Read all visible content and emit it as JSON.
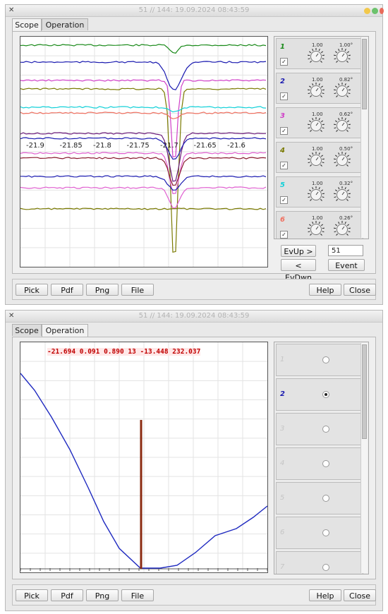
{
  "window_title": "51 // 144: 19.09.2024 08:43:59",
  "tabs": [
    "Scope",
    "Operation"
  ],
  "scope": {
    "x_tick_labels": [
      "-21.9",
      "-21.85",
      "-21.8",
      "-21.75",
      "-21.7",
      "-21.65",
      "-21.6"
    ],
    "channels": [
      {
        "num": "1",
        "color": "#1a8a1a",
        "gain": "1.00",
        "offset": "1.00°",
        "checked": "✓"
      },
      {
        "num": "2",
        "color": "#1a1ab0",
        "gain": "1.00",
        "offset": "0.82°",
        "checked": "✓"
      },
      {
        "num": "3",
        "color": "#d040c8",
        "gain": "1.00",
        "offset": "0.62°",
        "checked": "✓"
      },
      {
        "num": "4",
        "color": "#7a7a00",
        "gain": "1.00",
        "offset": "0.50°",
        "checked": "✓"
      },
      {
        "num": "5",
        "color": "#10d0d8",
        "gain": "1.00",
        "offset": "0.32°",
        "checked": "✓"
      },
      {
        "num": "6",
        "color": "#f07060",
        "gain": "1.00",
        "offset": "0.26°",
        "checked": "✓"
      }
    ],
    "evup_label": "EvUp >",
    "evdwn_label": "< EvDwn",
    "event_value": "51",
    "event_label": "Event"
  },
  "operation": {
    "readout": "-21.694 0.091 0.890 13 -13.448 232.037",
    "channels": [
      "1",
      "2",
      "3",
      "4",
      "5",
      "6",
      "7"
    ],
    "selected_channel": "2"
  },
  "bottom_buttons": {
    "pick": "Pick",
    "pdf": "Pdf",
    "png": "Png",
    "file": "File",
    "help": "Help",
    "close": "Close"
  },
  "colors": {
    "purple": "#6a1a7a",
    "darkred": "#8a1a30",
    "pink": "#e060d0",
    "brown": "#8a2a10"
  }
}
